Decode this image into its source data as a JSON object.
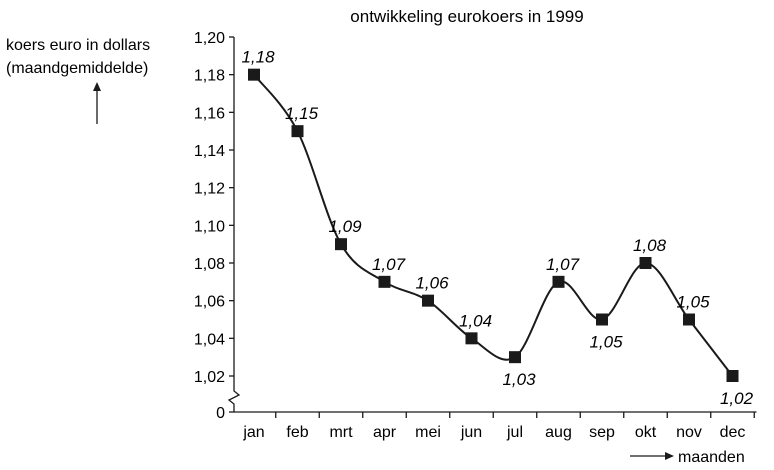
{
  "chart_data": {
    "type": "line",
    "title": "ontwikkeling eurokoers in 1999",
    "ylabel_line1": "koers euro in dollars",
    "ylabel_line2": "(maandgemiddelde)",
    "xlabel": "maanden",
    "categories": [
      "jan",
      "feb",
      "mrt",
      "apr",
      "mei",
      "jun",
      "jul",
      "aug",
      "sep",
      "okt",
      "nov",
      "dec"
    ],
    "values": [
      1.18,
      1.15,
      1.09,
      1.07,
      1.06,
      1.04,
      1.03,
      1.07,
      1.05,
      1.08,
      1.05,
      1.02
    ],
    "data_labels": [
      "1,18",
      "1,15",
      "1,09",
      "1,07",
      "1,06",
      "1,04",
      "1,03",
      "1,07",
      "1,05",
      "1,08",
      "1,05",
      "1,02"
    ],
    "label_placement": [
      "above",
      "above",
      "above",
      "above",
      "above",
      "above",
      "below",
      "above",
      "below",
      "above",
      "above",
      "below"
    ],
    "yticks": [
      1.02,
      1.04,
      1.06,
      1.08,
      1.1,
      1.12,
      1.14,
      1.16,
      1.18,
      1.2
    ],
    "ytick_labels": [
      "1,02",
      "1,04",
      "1,06",
      "1,08",
      "1,10",
      "1,12",
      "1,14",
      "1,16",
      "1,18",
      "1,20"
    ],
    "zero_label": "0",
    "ylim": [
      1.0,
      1.2
    ],
    "axis_break": true,
    "grid": false,
    "line_color": "#1a1a1a",
    "marker": "square"
  }
}
